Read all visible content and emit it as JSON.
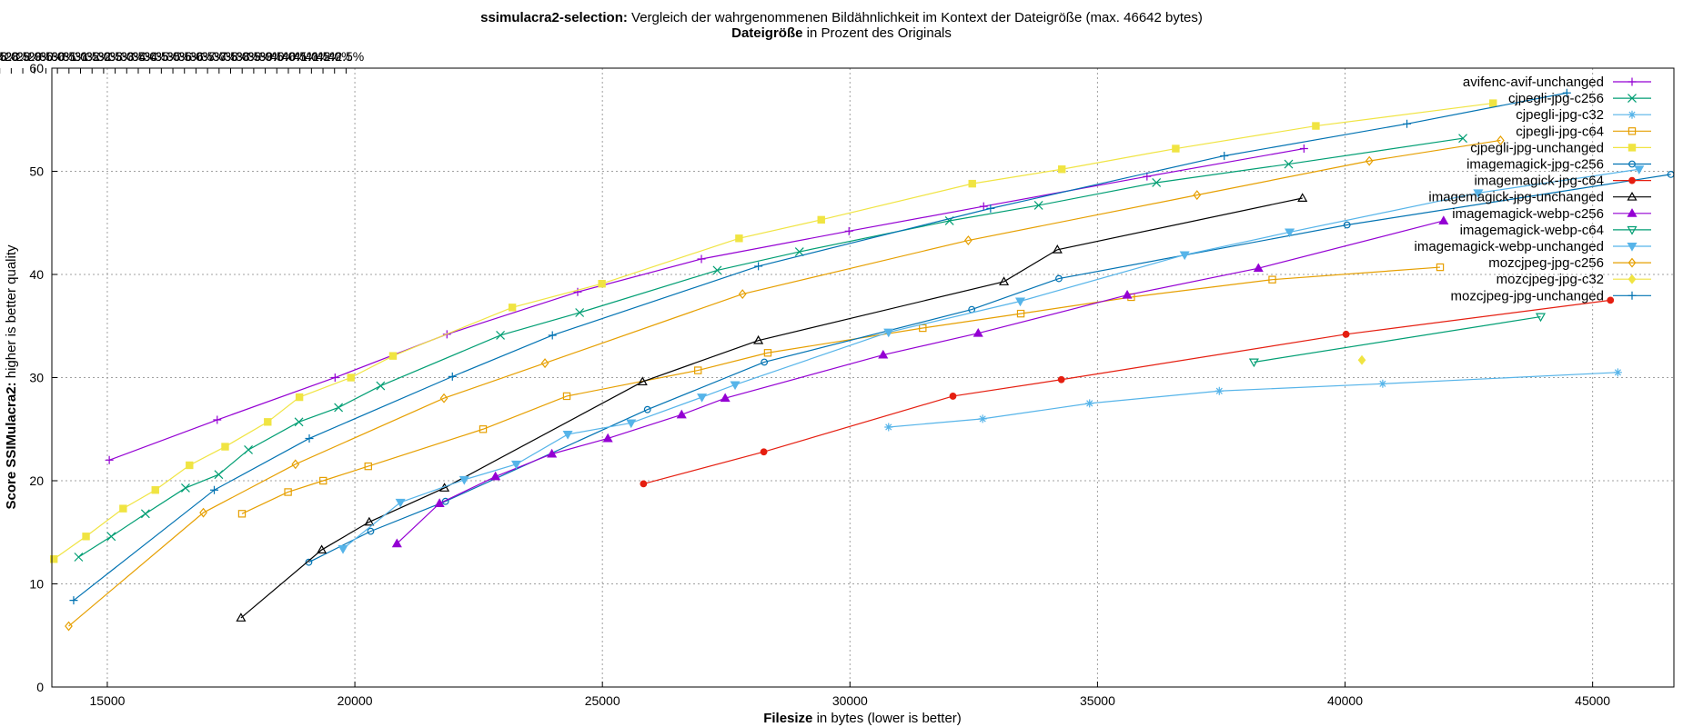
{
  "title": {
    "bold": "ssimulacra2-selection:",
    "rest": " Vergleich der wahrgenommenen Bildähnlichkeit im Kontext der Dateigröße (max. 46642 bytes)"
  },
  "subtitle": {
    "bold": "Dateigröße",
    "rest": " in Prozent des Originals"
  },
  "x_label": {
    "bold": "Filesize",
    "rest": " in bytes (lower is better)"
  },
  "y_label": {
    "bold": "Score SSIMulacra2:",
    "rest": " higher is better quality"
  },
  "chart_data": {
    "type": "line",
    "title": "ssimulacra2-selection: Vergleich der wahrgenommenen Bildähnlichkeit im Kontext der Dateigröße (max. 46642 bytes)",
    "xlabel": "Filesize in bytes (lower is better)",
    "ylabel": "Score SSIMulacra2: higher is better quality",
    "x2label": "Dateigröße in Prozent des Originals",
    "xlim": [
      13880,
      46642
    ],
    "ylim": [
      0,
      60
    ],
    "grid": true,
    "legend_position": "top-right",
    "x_ticks": [
      15000,
      20000,
      25000,
      30000,
      35000,
      40000,
      45000
    ],
    "y_ticks": [
      0,
      10,
      20,
      30,
      40,
      50,
      60
    ],
    "x2_ticks": [
      "13.0%",
      "13.5%",
      "14.0%",
      "14.5%",
      "15.0%",
      "15.5%",
      "16.0%",
      "16.5%",
      "17.0%",
      "17.5%",
      "18.0%",
      "18.5%",
      "19.0%",
      "19.5%",
      "20.0%",
      "20.5%",
      "21.0%",
      "21.5%",
      "22.0%",
      "22.5%",
      "23.0%",
      "23.5%",
      "24.0%",
      "24.5%",
      "25.0%",
      "25.5%",
      "26.0%",
      "26.5%",
      "27.0%",
      "27.5%",
      "28.0%",
      "28.5%",
      "29.0%",
      "29.5%",
      "30.0%",
      "30.5%",
      "31.0%",
      "31.5%",
      "32.0%",
      "32.5%",
      "33.0%",
      "33.5%",
      "34.0%",
      "34.5%",
      "35.0%",
      "35.5%",
      "36.0%",
      "36.5%",
      "37.0%",
      "37.5%",
      "38.0%",
      "38.5%",
      "39.0%",
      "39.5%",
      "40.0%",
      "40.5%",
      "41.0%",
      "41.5%",
      "42.0%",
      "42.5%"
    ],
    "series": [
      {
        "name": "avifenc-avif-unchanged",
        "color": "#9400d3",
        "marker": "plus",
        "points": [
          [
            15040,
            22.0
          ],
          [
            17220,
            25.9
          ],
          [
            19600,
            30.0
          ],
          [
            21860,
            34.2
          ],
          [
            24500,
            38.3
          ],
          [
            27000,
            41.5
          ],
          [
            29980,
            44.2
          ],
          [
            32700,
            46.6
          ],
          [
            36000,
            49.5
          ],
          [
            39170,
            52.2
          ]
        ]
      },
      {
        "name": "cjpegli-jpg-c256",
        "color": "#009e73",
        "marker": "x",
        "points": [
          [
            14420,
            12.6
          ],
          [
            15080,
            14.6
          ],
          [
            15770,
            16.8
          ],
          [
            16580,
            19.3
          ],
          [
            17250,
            20.6
          ],
          [
            17850,
            23.0
          ],
          [
            18870,
            25.7
          ],
          [
            19670,
            27.1
          ],
          [
            20520,
            29.2
          ],
          [
            22940,
            34.1
          ],
          [
            24540,
            36.3
          ],
          [
            27320,
            40.4
          ],
          [
            28980,
            42.2
          ],
          [
            32010,
            45.2
          ],
          [
            33810,
            46.7
          ],
          [
            36190,
            48.9
          ],
          [
            38860,
            50.7
          ],
          [
            42380,
            53.2
          ]
        ]
      },
      {
        "name": "cjpegli-jpg-c32",
        "color": "#56b4e9",
        "marker": "star",
        "points": [
          [
            30780,
            25.2
          ],
          [
            32680,
            26.0
          ],
          [
            34840,
            27.5
          ],
          [
            37460,
            28.7
          ],
          [
            40760,
            29.4
          ],
          [
            45510,
            30.5
          ]
        ]
      },
      {
        "name": "cjpegli-jpg-c64",
        "color": "#e69f00",
        "marker": "square",
        "points": [
          [
            17720,
            16.8
          ],
          [
            18650,
            18.9
          ],
          [
            19360,
            20.0
          ],
          [
            20270,
            21.4
          ],
          [
            22590,
            25.0
          ],
          [
            24280,
            28.2
          ],
          [
            26930,
            30.7
          ],
          [
            28340,
            32.4
          ],
          [
            31470,
            34.8
          ],
          [
            33450,
            36.2
          ],
          [
            35680,
            37.8
          ],
          [
            38530,
            39.5
          ],
          [
            41920,
            40.7
          ]
        ]
      },
      {
        "name": "cjpegli-jpg-unchanged",
        "color": "#f0e442",
        "marker": "filled-square",
        "points": [
          [
            13920,
            12.4
          ],
          [
            14570,
            14.6
          ],
          [
            15320,
            17.3
          ],
          [
            15970,
            19.1
          ],
          [
            16660,
            21.5
          ],
          [
            17380,
            23.3
          ],
          [
            18240,
            25.7
          ],
          [
            18880,
            28.1
          ],
          [
            19920,
            30.0
          ],
          [
            20770,
            32.1
          ],
          [
            23180,
            36.8
          ],
          [
            24990,
            39.1
          ],
          [
            27760,
            43.5
          ],
          [
            29420,
            45.3
          ],
          [
            32470,
            48.8
          ],
          [
            34280,
            50.2
          ],
          [
            36580,
            52.2
          ],
          [
            39410,
            54.4
          ],
          [
            42990,
            56.6
          ]
        ]
      },
      {
        "name": "imagemagick-jpg-c256",
        "color": "#0072b2",
        "marker": "circle",
        "points": [
          [
            19070,
            12.1
          ],
          [
            20320,
            15.1
          ],
          [
            21830,
            18.0
          ],
          [
            25910,
            26.9
          ],
          [
            28270,
            31.5
          ],
          [
            32460,
            36.6
          ],
          [
            34220,
            39.6
          ],
          [
            40040,
            44.8
          ],
          [
            46580,
            49.7
          ]
        ]
      },
      {
        "name": "imagemagick-jpg-c64",
        "color": "#e51e10",
        "marker": "filled-circle",
        "points": [
          [
            25830,
            19.7
          ],
          [
            28260,
            22.8
          ],
          [
            32080,
            28.2
          ],
          [
            34270,
            29.8
          ],
          [
            40020,
            34.2
          ],
          [
            45360,
            37.5
          ]
        ]
      },
      {
        "name": "imagemagick-jpg-unchanged",
        "color": "#000000",
        "marker": "triangle",
        "points": [
          [
            17700,
            6.7
          ],
          [
            19330,
            13.3
          ],
          [
            20290,
            16.0
          ],
          [
            21810,
            19.3
          ],
          [
            25810,
            29.6
          ],
          [
            28150,
            33.6
          ],
          [
            33110,
            39.3
          ],
          [
            34190,
            42.4
          ],
          [
            39140,
            47.4
          ]
        ]
      },
      {
        "name": "imagemagick-webp-c256",
        "color": "#9400d3",
        "marker": "filled-triangle",
        "points": [
          [
            20850,
            13.9
          ],
          [
            21710,
            17.8
          ],
          [
            22840,
            20.4
          ],
          [
            23980,
            22.6
          ],
          [
            25110,
            24.1
          ],
          [
            26600,
            26.4
          ],
          [
            27480,
            28.0
          ],
          [
            30670,
            32.2
          ],
          [
            32590,
            34.3
          ],
          [
            35600,
            38.0
          ],
          [
            38250,
            40.6
          ],
          [
            41990,
            45.2
          ]
        ]
      },
      {
        "name": "imagemagick-webp-c64",
        "color": "#009e73",
        "marker": "triangle-down",
        "points": [
          [
            38160,
            31.5
          ],
          [
            43950,
            35.9
          ]
        ]
      },
      {
        "name": "imagemagick-webp-unchanged",
        "color": "#56b4e9",
        "marker": "filled-triangle-down",
        "points": [
          [
            19760,
            13.4
          ],
          [
            20920,
            17.9
          ],
          [
            22210,
            20.1
          ],
          [
            23260,
            21.6
          ],
          [
            24300,
            24.5
          ],
          [
            25580,
            25.6
          ],
          [
            27010,
            28.1
          ],
          [
            27680,
            29.3
          ],
          [
            30780,
            34.4
          ],
          [
            33440,
            37.4
          ],
          [
            36760,
            41.9
          ],
          [
            38880,
            44.1
          ],
          [
            42690,
            47.9
          ],
          [
            45940,
            50.2
          ]
        ]
      },
      {
        "name": "mozcjpeg-jpg-c256",
        "color": "#e69f00",
        "marker": "diamond",
        "points": [
          [
            14220,
            5.9
          ],
          [
            16940,
            16.9
          ],
          [
            18800,
            21.6
          ],
          [
            21800,
            28.0
          ],
          [
            23840,
            31.4
          ],
          [
            27830,
            38.1
          ],
          [
            32390,
            43.3
          ],
          [
            37010,
            47.7
          ],
          [
            40490,
            51.0
          ],
          [
            43140,
            53.0
          ]
        ]
      },
      {
        "name": "mozcjpeg-jpg-c32",
        "color": "#f0e442",
        "marker": "filled-diamond",
        "points": [
          [
            40340,
            31.7
          ]
        ]
      },
      {
        "name": "mozcjpeg-jpg-unchanged",
        "color": "#0072b2",
        "marker": "plus",
        "points": [
          [
            14320,
            8.4
          ],
          [
            17160,
            19.1
          ],
          [
            19080,
            24.1
          ],
          [
            21970,
            30.1
          ],
          [
            23990,
            34.1
          ],
          [
            28150,
            40.8
          ],
          [
            32840,
            46.4
          ],
          [
            37560,
            51.5
          ],
          [
            41250,
            54.6
          ],
          [
            44480,
            57.6
          ]
        ]
      }
    ]
  }
}
